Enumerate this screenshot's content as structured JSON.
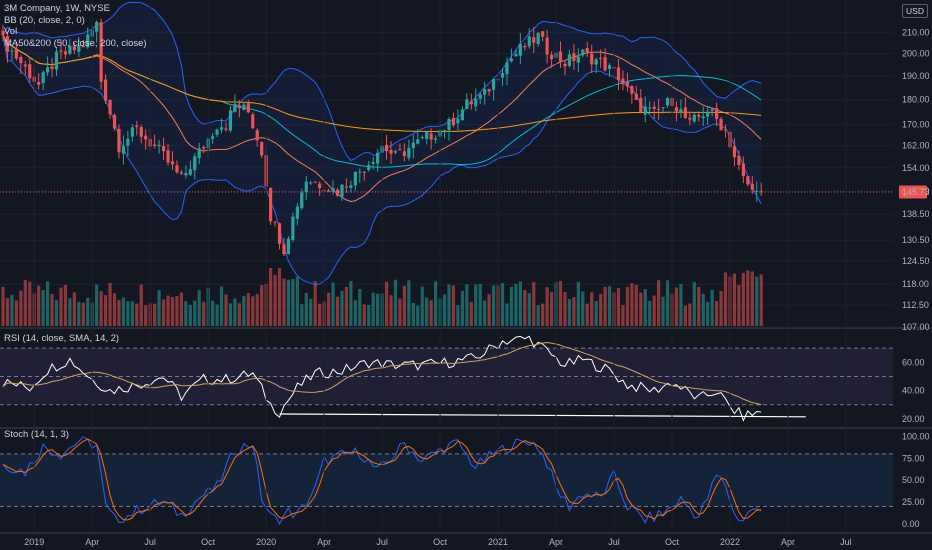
{
  "legend": {
    "symbol": "3M Company, 1W, NYSE",
    "bb": "BB (20, close, 2, 0)",
    "vol": "Vol",
    "ma": "MA50&200 (50, close, 200, close)",
    "rsi": "RSI (14, close, SMA, 14, 2)",
    "stoch": "Stoch (14, 1, 3)"
  },
  "currency": "USD",
  "last_price_label": "145.73",
  "colors": {
    "up": "#26a69a",
    "down": "#ef5350",
    "bb": "#2962ff",
    "ma50": "#00bcd4",
    "ma200": "#ff9800",
    "rsi": "#ffffff",
    "rsi_ma": "#d6a25b",
    "stoch_k": "#2962ff",
    "stoch_d": "#ff6d00"
  },
  "chart_data": [
    {
      "type": "candlestick",
      "title": "3M Company, 1W, NYSE",
      "yscale": "log",
      "ylim": [
        107,
        222
      ],
      "yticks": [
        "107.00",
        "112.50",
        "118.00",
        "124.50",
        "130.50",
        "138.50",
        "146.00",
        "154.00",
        "162.00",
        "170.00",
        "180.00",
        "190.00",
        "200.00",
        "210.00"
      ],
      "xticks": [
        "2019",
        "Apr",
        "Jul",
        "Oct",
        "2020",
        "Apr",
        "Jul",
        "Oct",
        "2021",
        "Apr",
        "Jul",
        "Oct",
        "2022",
        "Apr",
        "Jul"
      ],
      "last_price": 145.73,
      "close_anchors": [
        [
          0,
          206
        ],
        [
          8,
          186
        ],
        [
          12,
          198
        ],
        [
          18,
          204
        ],
        [
          21,
          214
        ],
        [
          22,
          188
        ],
        [
          26,
          162
        ],
        [
          30,
          168
        ],
        [
          35,
          160
        ],
        [
          40,
          150
        ],
        [
          45,
          162
        ],
        [
          48,
          170
        ],
        [
          50,
          170
        ],
        [
          52,
          178
        ],
        [
          55,
          175
        ],
        [
          58,
          160
        ],
        [
          60,
          138
        ],
        [
          63,
          128
        ],
        [
          66,
          142
        ],
        [
          68,
          150
        ],
        [
          72,
          148
        ],
        [
          75,
          146
        ],
        [
          78,
          150
        ],
        [
          82,
          156
        ],
        [
          85,
          162
        ],
        [
          88,
          158
        ],
        [
          92,
          162
        ],
        [
          96,
          166
        ],
        [
          100,
          170
        ],
        [
          104,
          178
        ],
        [
          108,
          182
        ],
        [
          112,
          194
        ],
        [
          116,
          202
        ],
        [
          120,
          208
        ],
        [
          122,
          202
        ],
        [
          126,
          196
        ],
        [
          130,
          200
        ],
        [
          134,
          196
        ],
        [
          138,
          190
        ],
        [
          142,
          178
        ],
        [
          146,
          174
        ],
        [
          150,
          180
        ],
        [
          154,
          170
        ],
        [
          158,
          176
        ],
        [
          162,
          168
        ],
        [
          164,
          158
        ],
        [
          166,
          150
        ],
        [
          168,
          146.5
        ],
        [
          170,
          145.7
        ]
      ],
      "series": [
        {
          "name": "BB (20, close, 2, 0)"
        },
        {
          "name": "MA50&200 (50, close, 200, close)"
        }
      ],
      "volume": {
        "name": "Vol",
        "scale": "relative"
      }
    },
    {
      "type": "line",
      "title": "RSI (14, close, SMA, 14, 2)",
      "ylim": [
        15,
        80
      ],
      "yticks": [
        "20.00",
        "40.00",
        "60.00"
      ],
      "bands": [
        30,
        50,
        70
      ],
      "rsi_anchors": [
        [
          0,
          46
        ],
        [
          6,
          42
        ],
        [
          10,
          55
        ],
        [
          15,
          62
        ],
        [
          20,
          48
        ],
        [
          24,
          40
        ],
        [
          30,
          44
        ],
        [
          36,
          50
        ],
        [
          40,
          36
        ],
        [
          45,
          48
        ],
        [
          50,
          48
        ],
        [
          56,
          52
        ],
        [
          60,
          30
        ],
        [
          62,
          25
        ],
        [
          66,
          42
        ],
        [
          70,
          52
        ],
        [
          76,
          54
        ],
        [
          82,
          60
        ],
        [
          88,
          58
        ],
        [
          94,
          58
        ],
        [
          100,
          60
        ],
        [
          106,
          63
        ],
        [
          112,
          75
        ],
        [
          118,
          77
        ],
        [
          121,
          70
        ],
        [
          126,
          58
        ],
        [
          130,
          62
        ],
        [
          136,
          54
        ],
        [
          140,
          44
        ],
        [
          146,
          40
        ],
        [
          150,
          46
        ],
        [
          156,
          34
        ],
        [
          160,
          40
        ],
        [
          163,
          28
        ],
        [
          166,
          22
        ],
        [
          170,
          25
        ]
      ],
      "trendline": {
        "from": [
          62,
          23.5
        ],
        "to": [
          180,
          21.5
        ]
      }
    },
    {
      "type": "line",
      "title": "Stoch (14, 1, 3)",
      "ylim": [
        -8,
        105
      ],
      "yticks": [
        "0.00",
        "25.00",
        "50.00",
        "75.00",
        "100.00"
      ],
      "bands": [
        20,
        80
      ],
      "k_anchors": [
        [
          0,
          68
        ],
        [
          5,
          60
        ],
        [
          9,
          88
        ],
        [
          13,
          80
        ],
        [
          17,
          95
        ],
        [
          21,
          90
        ],
        [
          23,
          20
        ],
        [
          25,
          5
        ],
        [
          28,
          10
        ],
        [
          32,
          20
        ],
        [
          36,
          25
        ],
        [
          40,
          10
        ],
        [
          44,
          30
        ],
        [
          48,
          42
        ],
        [
          52,
          85
        ],
        [
          56,
          92
        ],
        [
          58,
          30
        ],
        [
          60,
          8
        ],
        [
          62,
          4
        ],
        [
          64,
          14
        ],
        [
          66,
          10
        ],
        [
          70,
          40
        ],
        [
          72,
          72
        ],
        [
          76,
          78
        ],
        [
          80,
          82
        ],
        [
          84,
          60
        ],
        [
          88,
          80
        ],
        [
          90,
          92
        ],
        [
          94,
          72
        ],
        [
          98,
          85
        ],
        [
          102,
          92
        ],
        [
          106,
          65
        ],
        [
          110,
          80
        ],
        [
          114,
          90
        ],
        [
          118,
          95
        ],
        [
          120,
          88
        ],
        [
          122,
          70
        ],
        [
          124,
          40
        ],
        [
          127,
          20
        ],
        [
          130,
          35
        ],
        [
          134,
          30
        ],
        [
          137,
          55
        ],
        [
          140,
          20
        ],
        [
          144,
          5
        ],
        [
          148,
          12
        ],
        [
          152,
          28
        ],
        [
          156,
          8
        ],
        [
          158,
          30
        ],
        [
          160,
          55
        ],
        [
          162,
          45
        ],
        [
          164,
          10
        ],
        [
          166,
          5
        ],
        [
          168,
          18
        ],
        [
          170,
          12
        ]
      ]
    }
  ]
}
